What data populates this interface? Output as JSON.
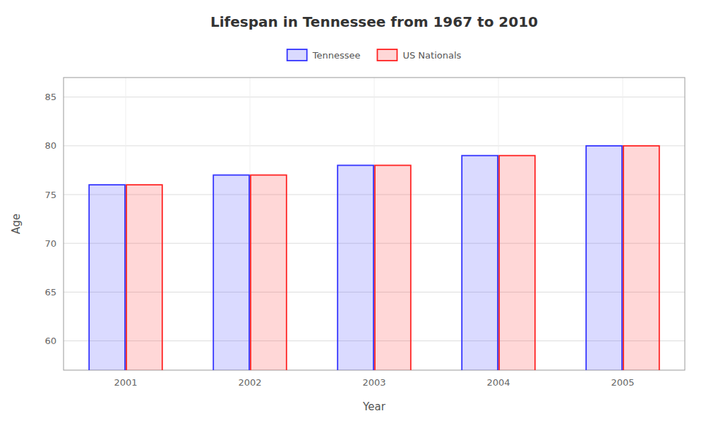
{
  "chart_data": {
    "type": "bar",
    "title": "Lifespan in Tennessee from 1967 to 2010",
    "x_label": "Year",
    "y_label": "Age",
    "categories": [
      "2001",
      "2002",
      "2003",
      "2004",
      "2005"
    ],
    "series": [
      {
        "name": "Tennessee",
        "color": "#3333ff",
        "values": [
          76,
          77,
          78,
          79,
          80
        ]
      },
      {
        "name": "US Nationals",
        "color": "#ff2222",
        "values": [
          76,
          77,
          78,
          79,
          80
        ]
      }
    ],
    "ylim": [
      57,
      87
    ],
    "yticks": [
      60,
      65,
      70,
      75,
      80,
      85
    ],
    "grid": true,
    "legend": "top"
  }
}
